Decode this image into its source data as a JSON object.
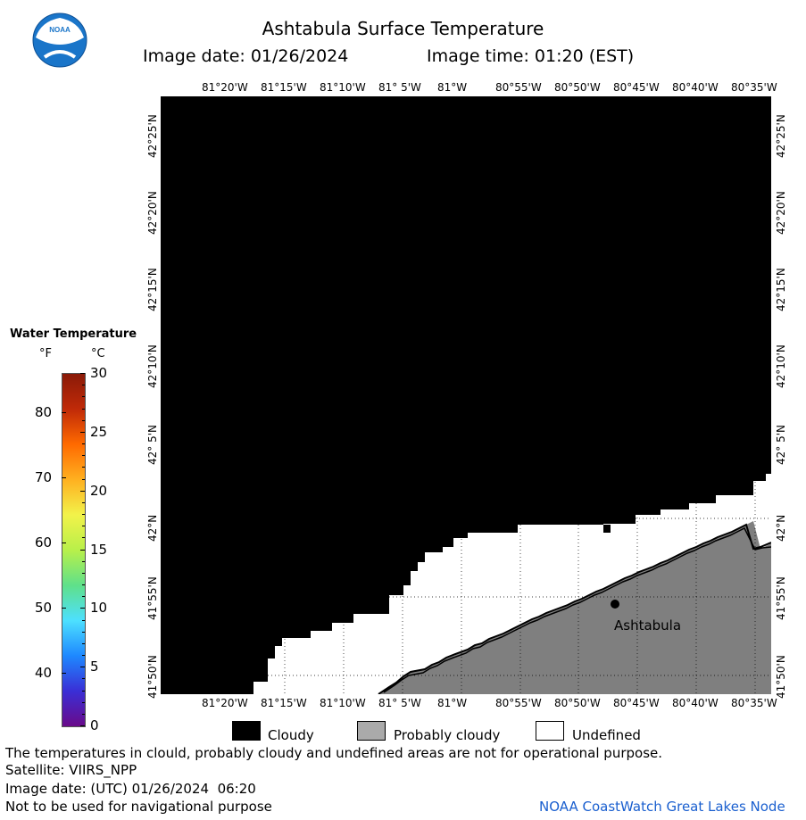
{
  "header": {
    "logo_text": "NOAA",
    "title": "Ashtabula Surface Temperature",
    "image_date_label": "Image date: 01/26/2024",
    "image_time_label": "Image time: 01:20 (EST)"
  },
  "map": {
    "lon_labels": [
      "81°20'W",
      "81°15'W",
      "81°10'W",
      "81° 5'W",
      "81°W",
      "80°55'W",
      "80°50'W",
      "80°45'W",
      "80°40'W",
      "80°35'W"
    ],
    "lat_labels": [
      "42°25'N",
      "42°20'N",
      "42°15'N",
      "42°10'N",
      "42° 5'N",
      "42°N",
      "41°55'N",
      "41°50'N"
    ],
    "place_label": "Ashtabula",
    "colors": {
      "cloud": "#000000",
      "land": "#7f7f7f",
      "water_undefined": "#ffffff",
      "shore": "#000000"
    }
  },
  "colorbar": {
    "title": "Water Temperature",
    "unit_f": "°F",
    "unit_c": "°C",
    "f_ticks": [
      "80",
      "70",
      "60",
      "50",
      "40"
    ],
    "c_ticks": [
      "30",
      "25",
      "20",
      "15",
      "10",
      "5",
      "0"
    ],
    "gradient_colors": [
      "#6a0a8a",
      "#3a2fd6",
      "#1e88ff",
      "#4de0ff",
      "#5fe08a",
      "#b8f04a",
      "#f2f24a",
      "#ffb020",
      "#ff6a00",
      "#c02a08",
      "#8a1a08"
    ]
  },
  "legend": {
    "cloudy": "Cloudy",
    "probably_cloudy": "Probably cloudy",
    "undefined": "Undefined",
    "cloudy_color": "#000000",
    "probably_cloudy_color": "#aaaaaa",
    "undefined_color": "#ffffff"
  },
  "footer": {
    "disclaimer": "The temperatures in clould, probably cloudy and undefined areas are not for operational purpose.",
    "satellite": "Satellite: VIIRS_NPP",
    "utc_date": "Image date: (UTC) 01/26/2024  06:20",
    "nav_warning": "Not to be used for navigational purpose",
    "credit": "NOAA CoastWatch Great Lakes Node"
  }
}
